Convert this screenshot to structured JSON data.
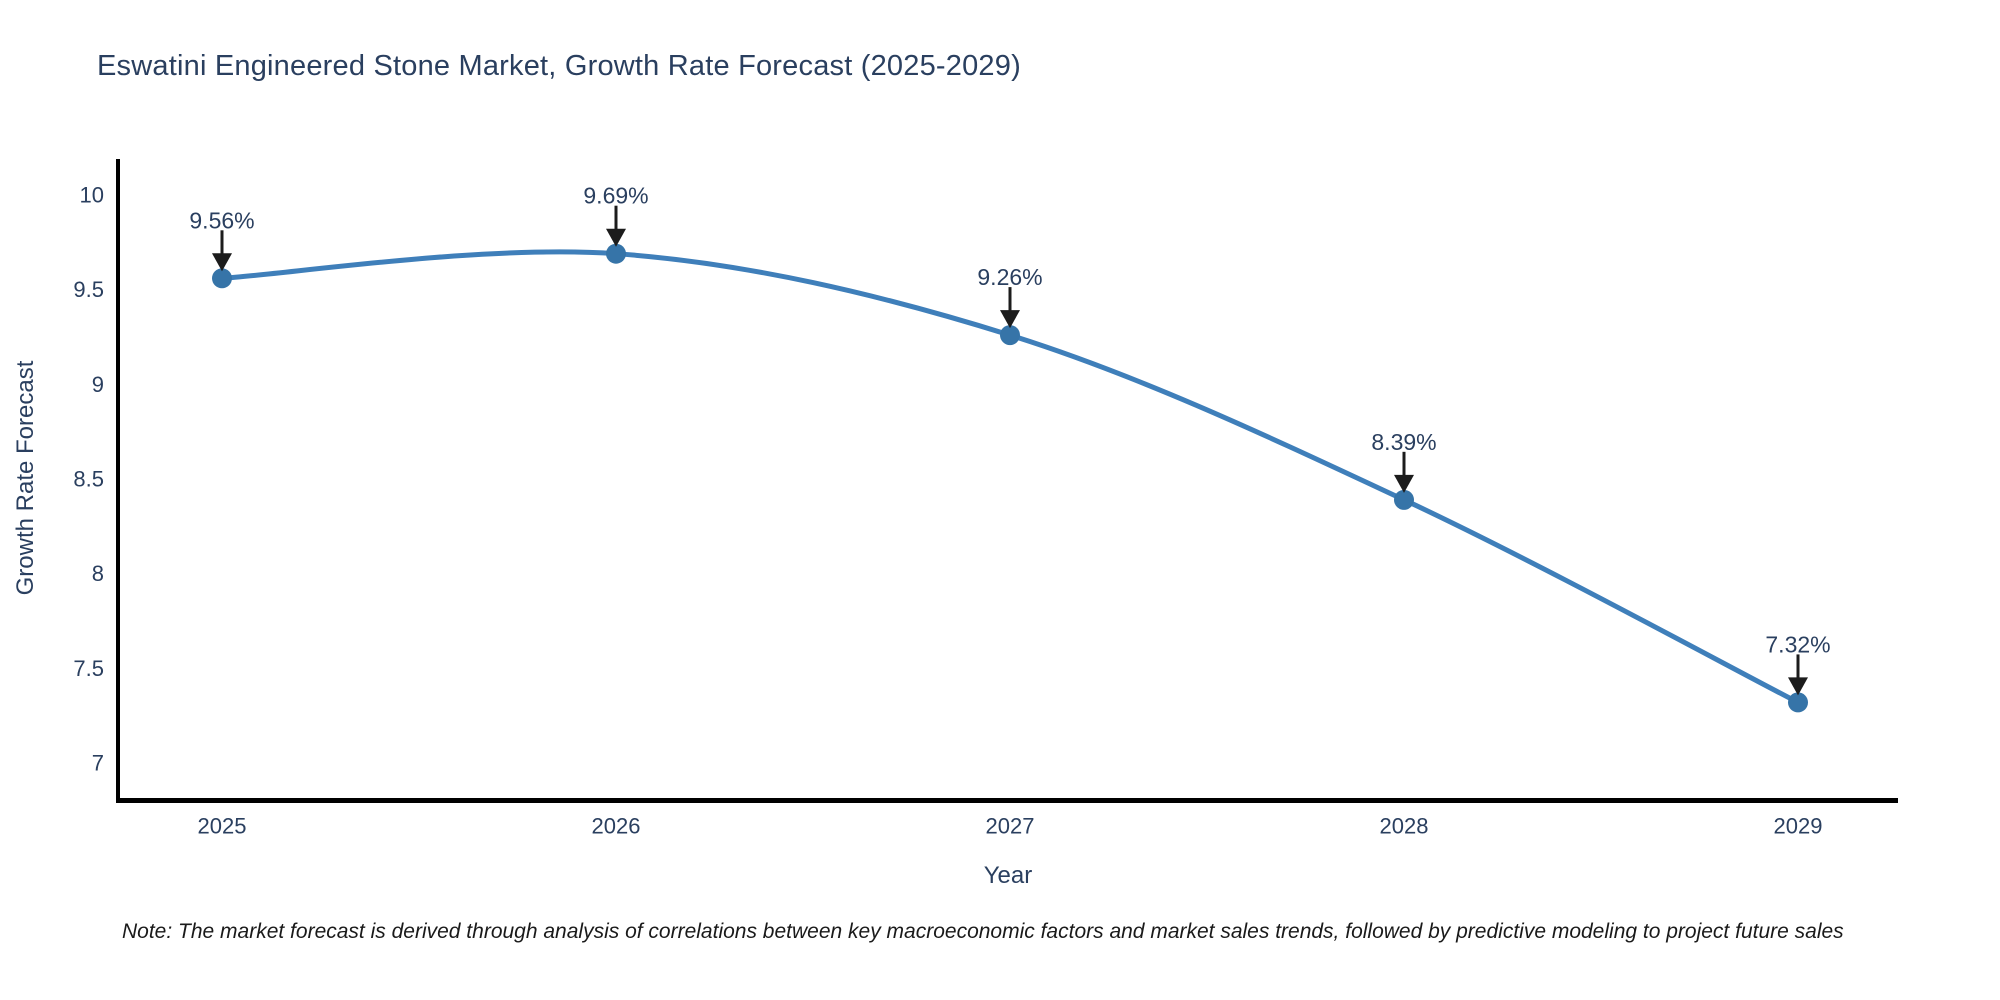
{
  "chart_data": {
    "type": "line",
    "title": "Eswatini Engineered Stone Market, Growth Rate Forecast (2025-2029)",
    "xlabel": "Year",
    "ylabel": "Growth Rate Forecast",
    "categories": [
      "2025",
      "2026",
      "2027",
      "2028",
      "2029"
    ],
    "values": [
      9.56,
      9.69,
      9.26,
      8.39,
      7.32
    ],
    "point_labels": [
      "9.56%",
      "9.69%",
      "9.26%",
      "8.39%",
      "7.32%"
    ],
    "y_ticks": [
      7,
      7.5,
      8,
      8.5,
      9,
      9.5,
      10
    ],
    "ylim": [
      6.8,
      10.2
    ],
    "grid": false,
    "legend_position": "none",
    "line_shape": "spline",
    "markers": true,
    "line_color": "#3f7fba",
    "marker_color": "#3674a8",
    "axis_color": "#000000",
    "text_color": "#2a3f5f",
    "annotation_arrow_color": "#1c1c1c"
  },
  "note": "Note: The market forecast is derived through analysis of correlations between key macroeconomic factors and market sales trends, followed by predictive modeling to project future sales"
}
